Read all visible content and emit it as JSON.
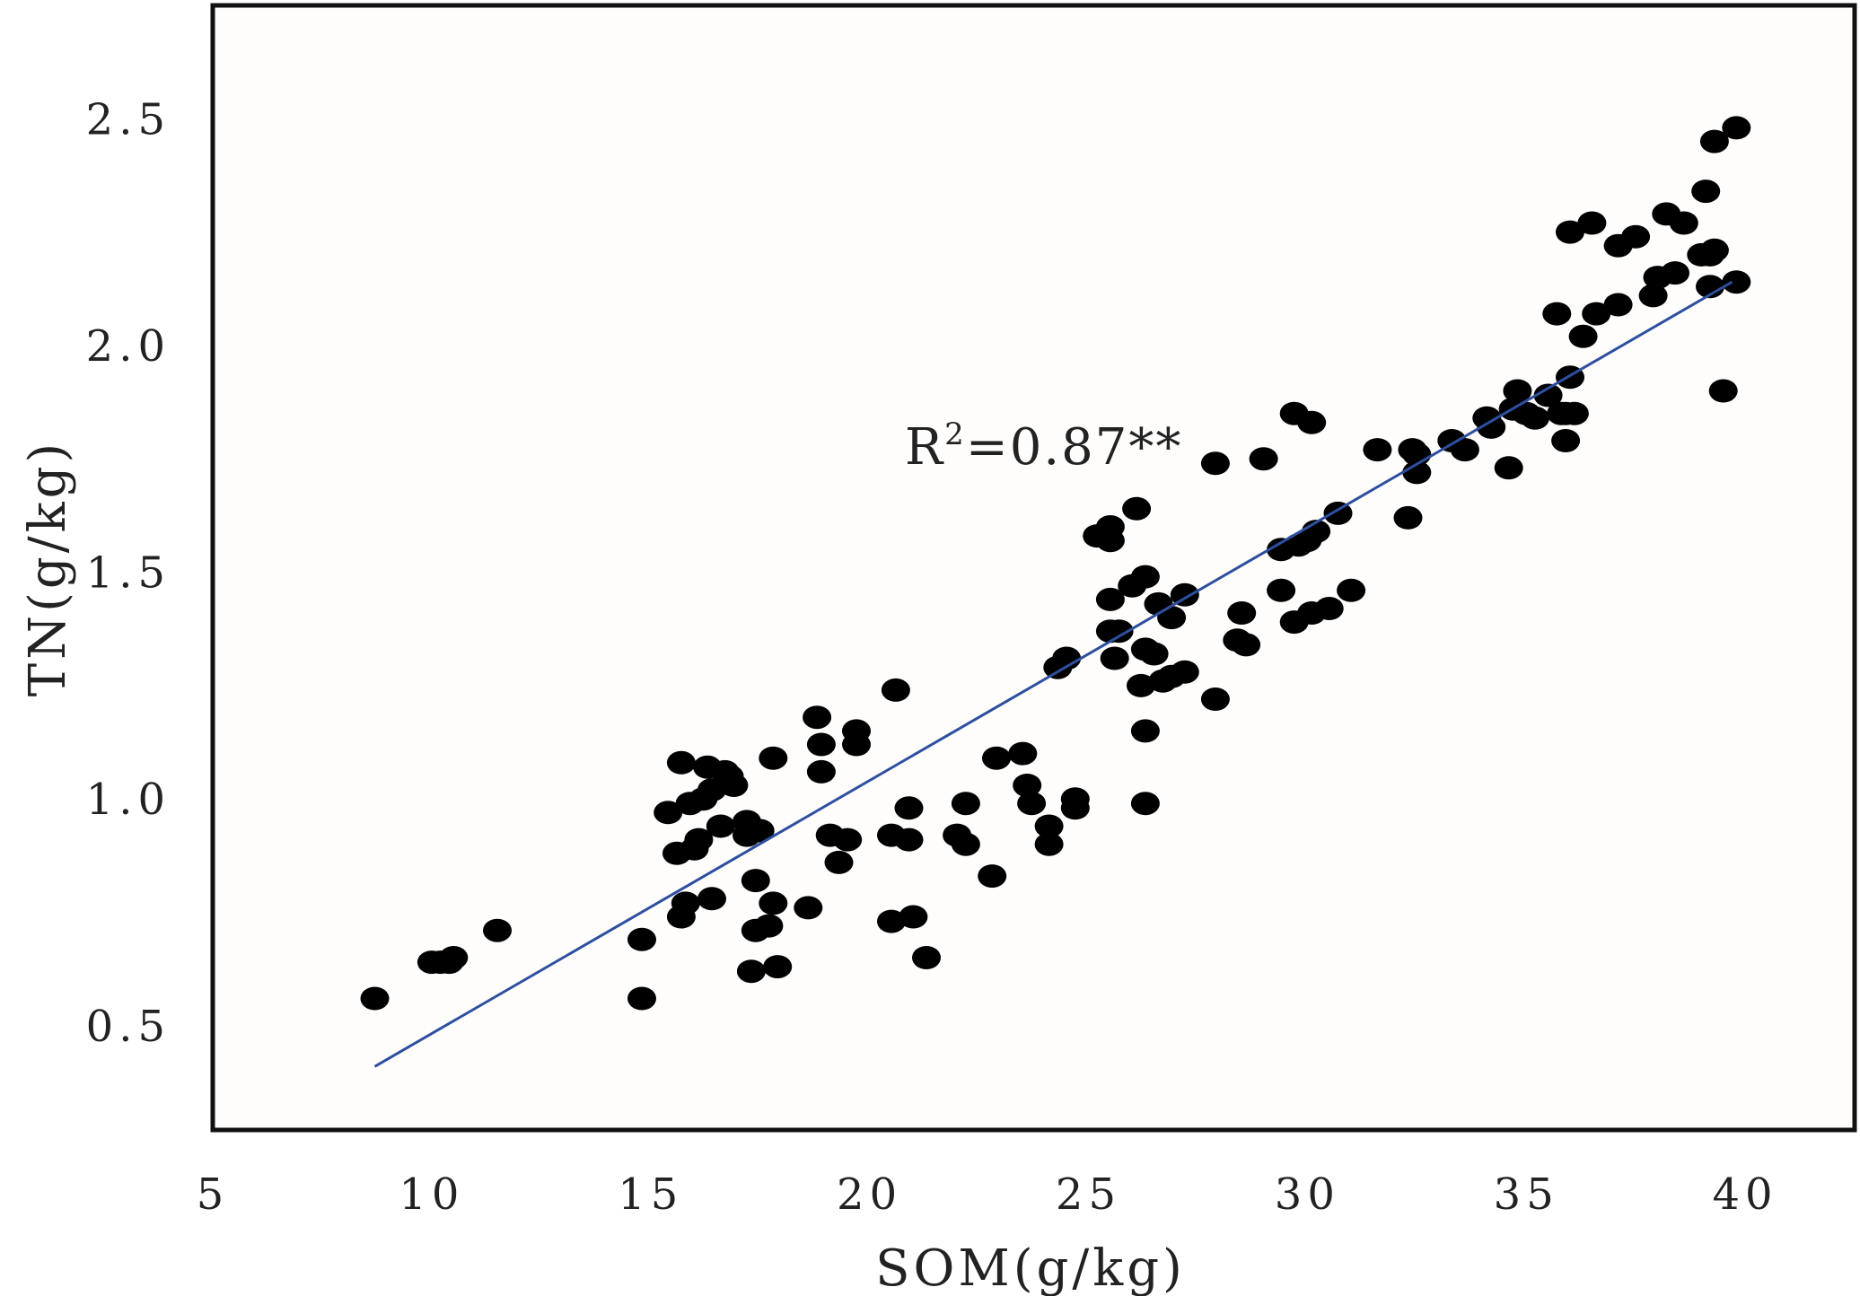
{
  "chart_data": {
    "type": "scatter",
    "xlabel": "SOM(g/kg)",
    "ylabel": "TN(g/kg)",
    "xlim": [
      5,
      42.5
    ],
    "ylim": [
      0.27,
      2.75
    ],
    "x_ticks": [
      5,
      10,
      15,
      20,
      25,
      30,
      35,
      40
    ],
    "y_ticks": [
      0.5,
      1.0,
      1.5,
      2.0,
      2.5
    ],
    "x_tick_labels": [
      "5",
      "10",
      "15",
      "20",
      "25",
      "30",
      "35",
      "40"
    ],
    "y_tick_labels": [
      "0.5",
      "1.0",
      "1.5",
      "2.0",
      "2.5"
    ],
    "grid": false,
    "point_color": "#000000",
    "trendline": {
      "color": "#2e4fa0",
      "x": [
        8.7,
        39.7
      ],
      "y": [
        0.41,
        2.14
      ]
    },
    "annotation": {
      "prefix": "R",
      "sup": "2",
      "suffix": "=0.87**"
    },
    "points": [
      [
        8.7,
        0.56
      ],
      [
        10.0,
        0.64
      ],
      [
        10.2,
        0.64
      ],
      [
        10.4,
        0.64
      ],
      [
        10.5,
        0.65
      ],
      [
        11.5,
        0.71
      ],
      [
        14.8,
        0.69
      ],
      [
        14.8,
        0.56
      ],
      [
        15.4,
        0.97
      ],
      [
        15.6,
        0.88
      ],
      [
        15.7,
        1.08
      ],
      [
        15.7,
        0.74
      ],
      [
        15.8,
        0.77
      ],
      [
        15.9,
        0.99
      ],
      [
        16.0,
        0.89
      ],
      [
        16.1,
        0.91
      ],
      [
        16.2,
        1.0
      ],
      [
        16.3,
        1.07
      ],
      [
        16.4,
        1.02
      ],
      [
        16.4,
        0.78
      ],
      [
        16.6,
        0.94
      ],
      [
        16.7,
        1.06
      ],
      [
        16.8,
        1.05
      ],
      [
        16.9,
        1.03
      ],
      [
        17.2,
        0.92
      ],
      [
        17.2,
        0.95
      ],
      [
        17.3,
        0.62
      ],
      [
        17.4,
        0.82
      ],
      [
        17.4,
        0.71
      ],
      [
        17.5,
        0.93
      ],
      [
        17.7,
        0.72
      ],
      [
        17.8,
        1.09
      ],
      [
        17.8,
        0.77
      ],
      [
        17.9,
        0.63
      ],
      [
        18.6,
        0.76
      ],
      [
        18.8,
        1.18
      ],
      [
        18.9,
        1.12
      ],
      [
        18.9,
        1.06
      ],
      [
        19.1,
        0.92
      ],
      [
        19.3,
        0.86
      ],
      [
        19.5,
        0.91
      ],
      [
        19.7,
        1.12
      ],
      [
        19.7,
        1.15
      ],
      [
        20.5,
        0.92
      ],
      [
        20.5,
        0.73
      ],
      [
        20.6,
        1.24
      ],
      [
        20.9,
        0.98
      ],
      [
        20.9,
        0.91
      ],
      [
        21.0,
        0.74
      ],
      [
        21.3,
        0.65
      ],
      [
        22.0,
        0.92
      ],
      [
        22.2,
        0.99
      ],
      [
        22.2,
        0.9
      ],
      [
        22.8,
        0.83
      ],
      [
        22.9,
        1.09
      ],
      [
        23.5,
        1.1
      ],
      [
        23.6,
        1.03
      ],
      [
        23.7,
        0.99
      ],
      [
        24.1,
        0.94
      ],
      [
        24.1,
        0.9
      ],
      [
        24.3,
        1.29
      ],
      [
        24.5,
        1.31
      ],
      [
        24.7,
        0.98
      ],
      [
        24.7,
        1.0
      ],
      [
        25.2,
        1.58
      ],
      [
        25.5,
        1.6
      ],
      [
        25.5,
        1.57
      ],
      [
        25.5,
        1.44
      ],
      [
        25.5,
        1.37
      ],
      [
        25.6,
        1.31
      ],
      [
        25.7,
        1.37
      ],
      [
        26.0,
        1.47
      ],
      [
        26.1,
        1.64
      ],
      [
        26.2,
        1.25
      ],
      [
        26.3,
        1.49
      ],
      [
        26.3,
        1.33
      ],
      [
        26.3,
        1.15
      ],
      [
        26.3,
        0.99
      ],
      [
        26.5,
        1.32
      ],
      [
        26.6,
        1.43
      ],
      [
        26.7,
        1.26
      ],
      [
        26.9,
        1.4
      ],
      [
        26.9,
        1.27
      ],
      [
        27.2,
        1.45
      ],
      [
        27.2,
        1.28
      ],
      [
        27.9,
        1.74
      ],
      [
        27.9,
        1.22
      ],
      [
        28.4,
        1.35
      ],
      [
        28.5,
        1.41
      ],
      [
        28.6,
        1.34
      ],
      [
        29.0,
        1.75
      ],
      [
        29.4,
        1.55
      ],
      [
        29.4,
        1.46
      ],
      [
        29.7,
        1.85
      ],
      [
        29.7,
        1.39
      ],
      [
        29.8,
        1.56
      ],
      [
        30.0,
        1.57
      ],
      [
        30.1,
        1.83
      ],
      [
        30.1,
        1.41
      ],
      [
        30.2,
        1.59
      ],
      [
        30.5,
        1.42
      ],
      [
        30.7,
        1.63
      ],
      [
        31.0,
        1.46
      ],
      [
        31.6,
        1.77
      ],
      [
        32.3,
        1.62
      ],
      [
        32.4,
        1.77
      ],
      [
        32.5,
        1.76
      ],
      [
        32.5,
        1.72
      ],
      [
        33.3,
        1.79
      ],
      [
        33.6,
        1.77
      ],
      [
        34.1,
        1.84
      ],
      [
        34.2,
        1.82
      ],
      [
        34.6,
        1.73
      ],
      [
        34.7,
        1.86
      ],
      [
        34.8,
        1.9
      ],
      [
        35.0,
        1.85
      ],
      [
        35.2,
        1.84
      ],
      [
        35.5,
        1.89
      ],
      [
        35.7,
        2.07
      ],
      [
        35.8,
        1.85
      ],
      [
        35.9,
        1.79
      ],
      [
        35.9,
        1.85
      ],
      [
        36.0,
        1.93
      ],
      [
        36.0,
        2.25
      ],
      [
        36.1,
        1.85
      ],
      [
        36.3,
        2.02
      ],
      [
        36.5,
        2.27
      ],
      [
        36.6,
        2.07
      ],
      [
        37.1,
        2.22
      ],
      [
        37.1,
        2.09
      ],
      [
        37.5,
        2.24
      ],
      [
        37.9,
        2.11
      ],
      [
        38.0,
        2.15
      ],
      [
        38.2,
        2.29
      ],
      [
        38.4,
        2.16
      ],
      [
        38.6,
        2.27
      ],
      [
        39.0,
        2.2
      ],
      [
        39.1,
        2.34
      ],
      [
        39.2,
        2.13
      ],
      [
        39.2,
        2.2
      ],
      [
        39.3,
        2.45
      ],
      [
        39.3,
        2.21
      ],
      [
        39.5,
        1.9
      ],
      [
        39.8,
        2.48
      ],
      [
        39.8,
        2.14
      ]
    ]
  }
}
